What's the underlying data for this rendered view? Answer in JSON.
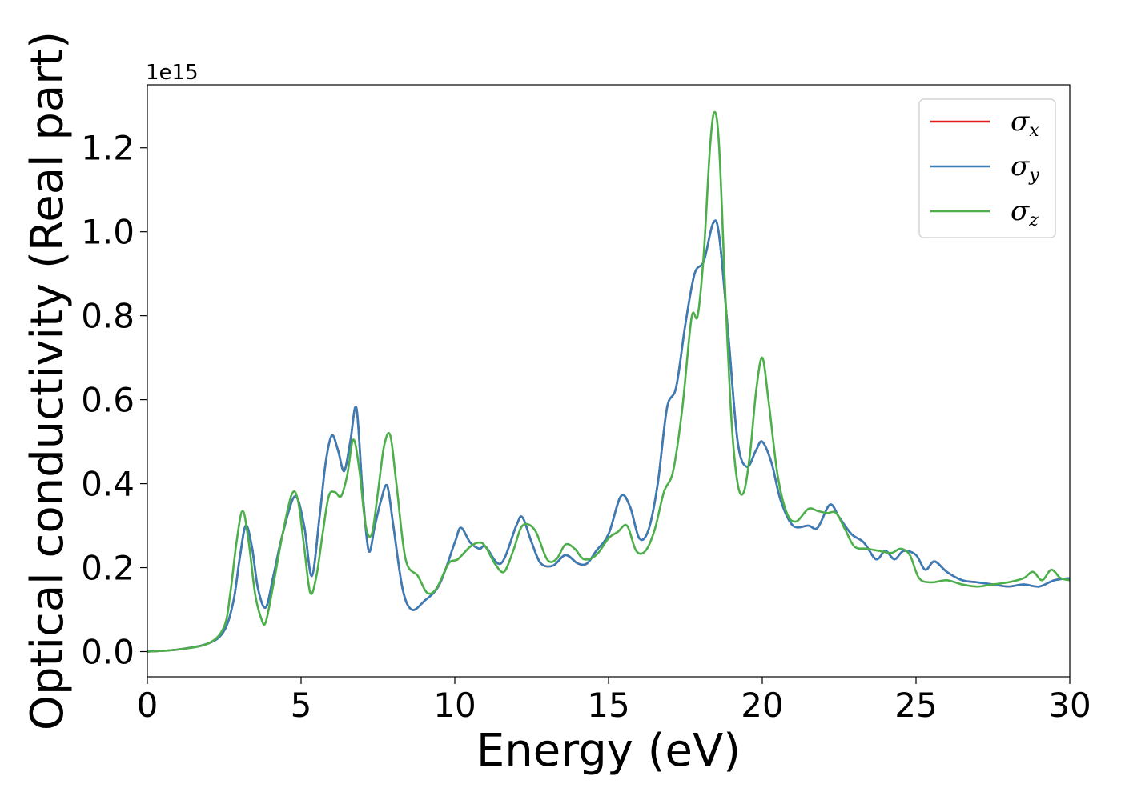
{
  "chart_data": {
    "type": "line",
    "title": "",
    "xlabel": "Energy (eV)",
    "ylabel": "Optical conductivity (Real part)",
    "y_offset_label": "1e15",
    "xlim": [
      0,
      30
    ],
    "ylim": [
      -0.06,
      1.35
    ],
    "x_ticks": [
      0,
      5,
      10,
      15,
      20,
      25,
      30
    ],
    "x_tick_labels": [
      "0",
      "5",
      "10",
      "15",
      "20",
      "25",
      "30"
    ],
    "y_ticks": [
      0.0,
      0.2,
      0.4,
      0.6,
      0.8,
      1.0,
      1.2
    ],
    "y_tick_labels": [
      "0.0",
      "0.2",
      "0.4",
      "0.6",
      "0.8",
      "1.0",
      "1.2"
    ],
    "grid": false,
    "legend_position": "top-right",
    "series": [
      {
        "name": "σx",
        "symbol": "σ",
        "subscript": "x",
        "color": "#e41a1c",
        "x": [
          0,
          1,
          2,
          2.5,
          2.8,
          3.0,
          3.2,
          3.4,
          3.6,
          3.85,
          4.1,
          4.4,
          4.8,
          5.1,
          5.35,
          5.6,
          5.8,
          6.0,
          6.2,
          6.4,
          6.6,
          6.8,
          7.0,
          7.2,
          7.4,
          7.6,
          7.8,
          8.0,
          8.3,
          8.6,
          9.0,
          9.5,
          10.0,
          10.2,
          10.5,
          10.8,
          11.0,
          11.5,
          12.0,
          12.2,
          12.5,
          12.8,
          13.2,
          13.6,
          14.0,
          14.3,
          14.6,
          15.0,
          15.4,
          15.7,
          16.0,
          16.3,
          16.6,
          16.9,
          17.2,
          17.5,
          17.8,
          18.1,
          18.4,
          18.6,
          18.9,
          19.2,
          19.5,
          19.8,
          20.0,
          20.3,
          20.6,
          21.0,
          21.5,
          21.8,
          22.2,
          22.5,
          22.9,
          23.3,
          23.7,
          24.0,
          24.3,
          24.6,
          25.0,
          25.3,
          25.6,
          26.0,
          26.5,
          27.0,
          27.5,
          28.0,
          28.5,
          29.0,
          29.5,
          30.0
        ],
        "y": [
          0.0,
          0.005,
          0.02,
          0.05,
          0.12,
          0.22,
          0.3,
          0.25,
          0.15,
          0.105,
          0.18,
          0.28,
          0.37,
          0.3,
          0.18,
          0.32,
          0.45,
          0.515,
          0.48,
          0.43,
          0.5,
          0.58,
          0.38,
          0.24,
          0.3,
          0.36,
          0.395,
          0.3,
          0.15,
          0.1,
          0.12,
          0.16,
          0.26,
          0.295,
          0.26,
          0.245,
          0.25,
          0.21,
          0.3,
          0.32,
          0.26,
          0.21,
          0.205,
          0.23,
          0.21,
          0.21,
          0.24,
          0.28,
          0.37,
          0.345,
          0.27,
          0.29,
          0.4,
          0.58,
          0.63,
          0.78,
          0.9,
          0.93,
          1.02,
          0.99,
          0.75,
          0.5,
          0.44,
          0.48,
          0.5,
          0.45,
          0.36,
          0.3,
          0.3,
          0.295,
          0.35,
          0.32,
          0.28,
          0.26,
          0.22,
          0.24,
          0.22,
          0.24,
          0.23,
          0.195,
          0.215,
          0.19,
          0.17,
          0.165,
          0.16,
          0.155,
          0.16,
          0.155,
          0.17,
          0.175
        ]
      },
      {
        "name": "σy",
        "symbol": "σ",
        "subscript": "y",
        "color": "#377eb8",
        "x": [
          0,
          1,
          2,
          2.5,
          2.8,
          3.0,
          3.2,
          3.4,
          3.6,
          3.85,
          4.1,
          4.4,
          4.8,
          5.1,
          5.35,
          5.6,
          5.8,
          6.0,
          6.2,
          6.4,
          6.6,
          6.8,
          7.0,
          7.2,
          7.4,
          7.6,
          7.8,
          8.0,
          8.3,
          8.6,
          9.0,
          9.5,
          10.0,
          10.2,
          10.5,
          10.8,
          11.0,
          11.5,
          12.0,
          12.2,
          12.5,
          12.8,
          13.2,
          13.6,
          14.0,
          14.3,
          14.6,
          15.0,
          15.4,
          15.7,
          16.0,
          16.3,
          16.6,
          16.9,
          17.2,
          17.5,
          17.8,
          18.1,
          18.4,
          18.6,
          18.9,
          19.2,
          19.5,
          19.8,
          20.0,
          20.3,
          20.6,
          21.0,
          21.5,
          21.8,
          22.2,
          22.5,
          22.9,
          23.3,
          23.7,
          24.0,
          24.3,
          24.6,
          25.0,
          25.3,
          25.6,
          26.0,
          26.5,
          27.0,
          27.5,
          28.0,
          28.5,
          29.0,
          29.5,
          30.0
        ],
        "y": [
          0.0,
          0.005,
          0.02,
          0.05,
          0.12,
          0.22,
          0.3,
          0.25,
          0.15,
          0.105,
          0.18,
          0.28,
          0.37,
          0.3,
          0.18,
          0.32,
          0.45,
          0.515,
          0.48,
          0.43,
          0.5,
          0.58,
          0.38,
          0.24,
          0.3,
          0.36,
          0.395,
          0.3,
          0.15,
          0.1,
          0.12,
          0.16,
          0.26,
          0.295,
          0.26,
          0.245,
          0.25,
          0.21,
          0.3,
          0.32,
          0.26,
          0.21,
          0.205,
          0.23,
          0.21,
          0.21,
          0.24,
          0.28,
          0.37,
          0.345,
          0.27,
          0.29,
          0.4,
          0.58,
          0.63,
          0.78,
          0.9,
          0.93,
          1.02,
          0.99,
          0.75,
          0.5,
          0.44,
          0.48,
          0.5,
          0.45,
          0.36,
          0.3,
          0.3,
          0.295,
          0.35,
          0.32,
          0.28,
          0.26,
          0.22,
          0.24,
          0.22,
          0.24,
          0.23,
          0.195,
          0.215,
          0.19,
          0.17,
          0.165,
          0.16,
          0.155,
          0.16,
          0.155,
          0.17,
          0.175
        ]
      },
      {
        "name": "σz",
        "symbol": "σ",
        "subscript": "z",
        "color": "#4daf4a",
        "x": [
          0,
          1,
          2,
          2.5,
          2.7,
          2.9,
          3.1,
          3.3,
          3.5,
          3.7,
          3.85,
          4.1,
          4.4,
          4.7,
          4.9,
          5.1,
          5.3,
          5.5,
          5.7,
          5.9,
          6.1,
          6.3,
          6.5,
          6.7,
          6.9,
          7.1,
          7.3,
          7.5,
          7.7,
          7.9,
          8.1,
          8.4,
          8.8,
          9.1,
          9.4,
          9.8,
          10.1,
          10.5,
          10.8,
          11.0,
          11.3,
          11.6,
          11.9,
          12.2,
          12.6,
          13.0,
          13.3,
          13.6,
          13.9,
          14.2,
          14.6,
          15.0,
          15.3,
          15.6,
          15.9,
          16.2,
          16.5,
          16.8,
          17.1,
          17.4,
          17.7,
          17.9,
          18.1,
          18.3,
          18.45,
          18.6,
          18.8,
          19.0,
          19.2,
          19.4,
          19.6,
          19.8,
          20.0,
          20.2,
          20.5,
          20.8,
          21.1,
          21.5,
          21.8,
          22.1,
          22.4,
          22.7,
          23.0,
          23.4,
          23.8,
          24.2,
          24.5,
          24.8,
          25.1,
          25.5,
          26.0,
          26.5,
          27.0,
          27.5,
          28.0,
          28.5,
          28.8,
          29.1,
          29.4,
          29.7,
          30.0
        ],
        "y": [
          0.0,
          0.005,
          0.02,
          0.06,
          0.14,
          0.26,
          0.335,
          0.26,
          0.14,
          0.08,
          0.07,
          0.16,
          0.28,
          0.375,
          0.36,
          0.25,
          0.14,
          0.18,
          0.28,
          0.37,
          0.38,
          0.37,
          0.42,
          0.505,
          0.43,
          0.3,
          0.28,
          0.38,
          0.49,
          0.515,
          0.4,
          0.22,
          0.18,
          0.14,
          0.15,
          0.21,
          0.22,
          0.25,
          0.26,
          0.25,
          0.21,
          0.19,
          0.24,
          0.3,
          0.29,
          0.22,
          0.22,
          0.255,
          0.245,
          0.22,
          0.23,
          0.27,
          0.285,
          0.3,
          0.24,
          0.24,
          0.29,
          0.38,
          0.43,
          0.58,
          0.795,
          0.8,
          0.95,
          1.2,
          1.285,
          1.2,
          0.85,
          0.55,
          0.4,
          0.38,
          0.47,
          0.62,
          0.7,
          0.6,
          0.42,
          0.33,
          0.31,
          0.34,
          0.335,
          0.33,
          0.33,
          0.29,
          0.25,
          0.245,
          0.24,
          0.235,
          0.245,
          0.23,
          0.175,
          0.165,
          0.17,
          0.16,
          0.155,
          0.16,
          0.165,
          0.175,
          0.19,
          0.17,
          0.195,
          0.175,
          0.17
        ]
      }
    ]
  }
}
